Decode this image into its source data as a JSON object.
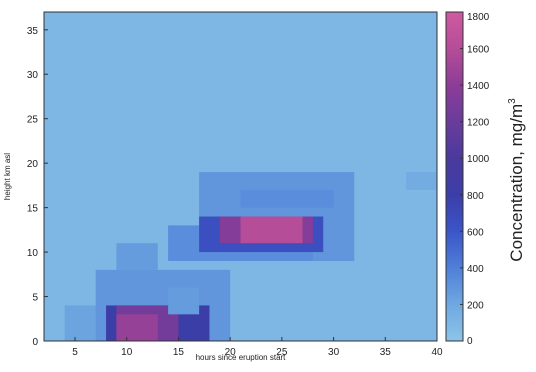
{
  "chart_data": {
    "type": "heatmap",
    "title": "",
    "xlabel": "hours since eruption start",
    "ylabel": "height km asl",
    "colorbar_label": "Concentration, mg/m",
    "colorbar_label_superscript": "3",
    "xlim": [
      2,
      40
    ],
    "ylim": [
      0,
      37
    ],
    "xticks": [
      5,
      10,
      15,
      20,
      25,
      30,
      35,
      40
    ],
    "yticks": [
      0,
      5,
      10,
      15,
      20,
      25,
      30,
      35
    ],
    "clim": [
      0,
      1800
    ],
    "colorbar_ticks": [
      0,
      200,
      400,
      600,
      800,
      1000,
      1200,
      1400,
      1600,
      1800
    ],
    "colormap": [
      "#8cc4e8",
      "#6fa8e0",
      "#4f7fd8",
      "#3b55c8",
      "#3c3ea8",
      "#4a3a9c",
      "#6a3c9c",
      "#8c3d98",
      "#b54d98",
      "#cf5aa0"
    ],
    "background_value": 100,
    "grid": false,
    "cells": [
      {
        "x": [
          17,
          32
        ],
        "y": [
          9,
          19
        ],
        "value": 290
      },
      {
        "x": [
          21,
          30
        ],
        "y": [
          15,
          17
        ],
        "value": 330
      },
      {
        "x": [
          14,
          28
        ],
        "y": [
          9,
          13
        ],
        "value": 330
      },
      {
        "x": [
          17,
          29
        ],
        "y": [
          10,
          14
        ],
        "value": 650
      },
      {
        "x": [
          19,
          28
        ],
        "y": [
          11,
          14
        ],
        "value": 1350
      },
      {
        "x": [
          21,
          27
        ],
        "y": [
          11,
          14
        ],
        "value": 1600
      },
      {
        "x": [
          37,
          40
        ],
        "y": [
          17,
          19
        ],
        "value": 170
      },
      {
        "x": [
          4,
          9
        ],
        "y": [
          0,
          4
        ],
        "value": 220
      },
      {
        "x": [
          7,
          20
        ],
        "y": [
          0,
          8
        ],
        "value": 290
      },
      {
        "x": [
          9,
          13
        ],
        "y": [
          8,
          11
        ],
        "value": 260
      },
      {
        "x": [
          8,
          18
        ],
        "y": [
          0,
          4
        ],
        "value": 800
      },
      {
        "x": [
          9,
          15
        ],
        "y": [
          0,
          4
        ],
        "value": 1250
      },
      {
        "x": [
          9,
          13
        ],
        "y": [
          0,
          3
        ],
        "value": 1450
      },
      {
        "x": [
          14,
          17
        ],
        "y": [
          3,
          6
        ],
        "value": 260
      }
    ]
  }
}
